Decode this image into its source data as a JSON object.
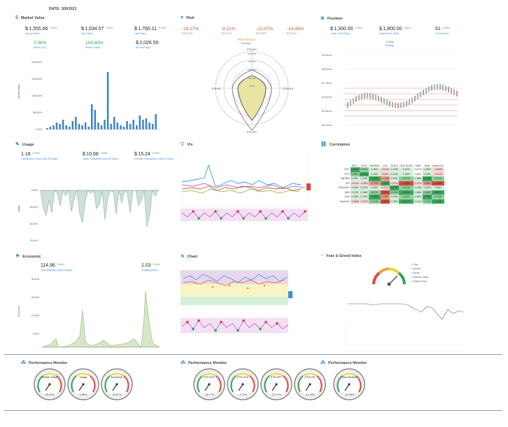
{
  "header": {
    "date": "DATE:  3/8/2021"
  },
  "colors": {
    "blue": "#3a8fd8",
    "green": "#2e9e4f",
    "red": "#d84a3a",
    "bar": "#3c82c8"
  },
  "market_value": {
    "title": "Market Value",
    "kpis": [
      {
        "prefix": "$",
        "value": "1,555.66",
        "change": "0.00%",
        "label": "Anchor Value"
      },
      {
        "prefix": "$",
        "value": "1,634.57",
        "change": "0.00%",
        "label": "New Value"
      },
      {
        "prefix": "$",
        "value": "1,760.11",
        "change": "0.00%",
        "label": "Last Value"
      },
      {
        "prefix": "",
        "value": "7.08%",
        "change": "",
        "label": "Return (RT)"
      },
      {
        "prefix": "",
        "value": "143.40%",
        "change": "",
        "label": "Return (Total)"
      },
      {
        "prefix": "$",
        "value": "2,026.55",
        "change": "",
        "label": "All-Time High"
      }
    ]
  },
  "risk": {
    "title": "Risk",
    "kpis": [
      {
        "value": "-16.17%",
        "label": "ETH-DXY"
      },
      {
        "value": "-9.11%",
        "label": "ETH-GLD"
      },
      {
        "value": "-22.07%",
        "label": "ETH-SPY"
      },
      {
        "value": "-14.45%",
        "label": "ETH-VIX"
      }
    ],
    "status": "Risk Neutral",
    "status_label": "Strategy",
    "radar_labels": [
      "ETH-DXY",
      "ETH-GLD",
      "ETH-SPY",
      "ETH-VIX"
    ],
    "radar_ticks": [
      "1000.00%",
      "500.00%",
      "300.00%",
      "100.00%",
      "0.00%"
    ]
  },
  "position": {
    "title": "Position",
    "kpis": [
      {
        "prefix": "$",
        "value": "1,300.00",
        "change": "0.00%",
        "label": "Lower Price (Buy)"
      },
      {
        "prefix": "$",
        "value": "1,800.00",
        "change": "0.00%",
        "label": "Upper Price (Sell)"
      },
      {
        "prefix": "",
        "value": "61",
        "change": "0.00%",
        "label": "Grid Number"
      }
    ],
    "mode": "Long",
    "mode_label": "Strategy",
    "yticks": [
      "$2,250.00",
      "$2,000.00",
      "$1,750.00",
      "$1,500.00",
      "$1,250.00",
      "$1,000.00"
    ]
  },
  "usage": {
    "title": "Usage",
    "kpis": [
      {
        "prefix": "",
        "value": "1.18",
        "change": "0.00%",
        "label": "Transaction Count (Last 30 Days)"
      },
      {
        "prefix": "$",
        "value": "10.68",
        "change": "0.00%",
        "label": "Value Transacted (Last 30 Days)"
      },
      {
        "prefix": "$",
        "value": "15.24",
        "change": "0.00%",
        "label": "Average Transaction (Last 30 Days)"
      }
    ],
    "ylabel": "Usage",
    "yticks": [
      "0.00%",
      "-25.00%",
      "-50.00%",
      "-75.00%"
    ]
  },
  "vix": {
    "title": "Vix"
  },
  "correlation": {
    "title": "Correlation",
    "headers": [
      "BTC",
      "ETH",
      "S&P500",
      "VIX",
      "GOLD",
      "GOLD/VIX",
      "M30",
      "Dow",
      "Dow/VIX"
    ],
    "rows": [
      {
        "label": "BTC",
        "cells": [
          "1.0000",
          "0.8974",
          "0.2547",
          "-0.0134",
          "0.2049",
          "0.1576",
          "0.0473",
          "0.1800",
          "-0.0668"
        ]
      },
      {
        "label": "ETH",
        "cells": [
          "0.8974",
          "1.0000",
          "0.2251",
          "-0.0251",
          "0.2153",
          "0.1669",
          "0.0511",
          "0.2051",
          "-0.0722"
        ]
      },
      {
        "label": "S&P500",
        "cells": [
          "0.2547",
          "0.2251",
          "1.0000",
          "-0.7184",
          "0.3051",
          "0.6733",
          "0.4561",
          "0.9548",
          "0.7145"
        ]
      },
      {
        "label": "VIX",
        "cells": [
          "-0.0134",
          "-0.0251",
          "-0.7184",
          "1.0000",
          "-0.2713",
          "-0.9312",
          "-0.3711",
          "-0.6987",
          "-0.9801"
        ]
      },
      {
        "label": "GOLD/VIX",
        "cells": [
          "0.2049",
          "0.2153",
          "0.3051",
          "-0.2713",
          "1.0000",
          "0.5230",
          "0.2281",
          "0.3004",
          "0.2961"
        ]
      },
      {
        "label": "M30",
        "cells": [
          "0.1576",
          "0.1669",
          "0.6733",
          "-0.9312",
          "0.5230",
          "1.0000",
          "0.3864",
          "0.6637",
          "0.9472"
        ]
      },
      {
        "label": "Dow",
        "cells": [
          "0.1800",
          "0.2051",
          "0.9548",
          "-0.6987",
          "0.3004",
          "0.6637",
          "0.4011",
          "1.0000",
          "0.7246"
        ]
      },
      {
        "label": "Dow/VIX",
        "cells": [
          "-0.0668",
          "-0.0722",
          "0.7145",
          "-0.9801",
          "0.2961",
          "0.9472",
          "0.4122",
          "0.7246",
          "1.0000"
        ]
      }
    ]
  },
  "economic": {
    "title": "Economic",
    "kpis": [
      {
        "value": "114.96",
        "change": "0.00%",
        "label": "Treat Analysis (Last 30 Days)"
      },
      {
        "value": "1.03",
        "change": "0.00%",
        "label": "Volatility (M30)"
      }
    ],
    "ylabel": "Economic",
    "yticks": [
      "30.00%",
      "20.00%",
      "10.00%",
      "0.00%"
    ]
  },
  "chart": {
    "title": "Chart"
  },
  "fear_greed": {
    "title": "Fear & Greed Index",
    "legend": [
      "Fear",
      "Neutral",
      "Greed",
      "Extreme Greed",
      "Extreme Fear"
    ]
  },
  "monitors": [
    {
      "title": "Performance Monitor",
      "gauges": [
        {
          "name": "Market Value",
          "value": "55.54%"
        },
        {
          "name": "Usage",
          "value": "4.88%"
        },
        {
          "name": "Economic",
          "value": "16.87%"
        }
      ]
    },
    {
      "title": "Performance Monitor",
      "gauges": [
        {
          "name": "ETH-DXY",
          "value": "-16.17%"
        },
        {
          "name": "ETH-GLD",
          "value": "-9.11%"
        },
        {
          "name": "ETH-SPY",
          "value": "-22.07%"
        },
        {
          "name": "ETH-VIX",
          "value": "-14.45%"
        }
      ]
    },
    {
      "title": "Performance Monitor",
      "gauges": [
        {
          "name": "Risk Neutral",
          "value": "-15.95%"
        }
      ]
    }
  ]
}
